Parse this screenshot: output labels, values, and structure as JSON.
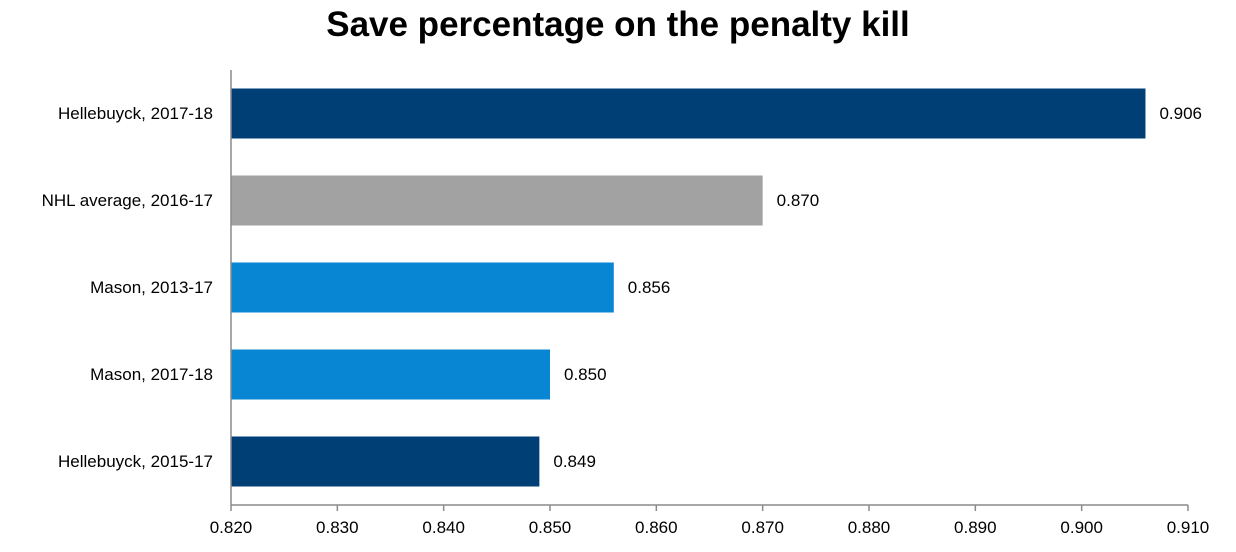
{
  "chart_data": {
    "type": "bar",
    "orientation": "horizontal",
    "title": "Save percentage on the penalty kill",
    "xlabel": "",
    "ylabel": "",
    "categories": [
      "Hellebuyck, 2017-18",
      "NHL average, 2016-17",
      "Mason, 2013-17",
      "Mason, 2017-18",
      "Hellebuyck, 2015-17"
    ],
    "values": [
      0.906,
      0.87,
      0.856,
      0.85,
      0.849
    ],
    "data_labels": [
      "0.906",
      "0.870",
      "0.856",
      "0.850",
      "0.849"
    ],
    "bar_colors": [
      "#003f76",
      "#a2a2a2",
      "#0986d3",
      "#0986d3",
      "#003f76"
    ],
    "xlim": [
      0.82,
      0.91
    ],
    "x_ticks": [
      0.82,
      0.83,
      0.84,
      0.85,
      0.86,
      0.87,
      0.88,
      0.89,
      0.9,
      0.91
    ],
    "x_tick_labels": [
      "0.820",
      "0.830",
      "0.840",
      "0.850",
      "0.860",
      "0.870",
      "0.880",
      "0.890",
      "0.900",
      "0.910"
    ],
    "grid": false,
    "legend": "none"
  }
}
